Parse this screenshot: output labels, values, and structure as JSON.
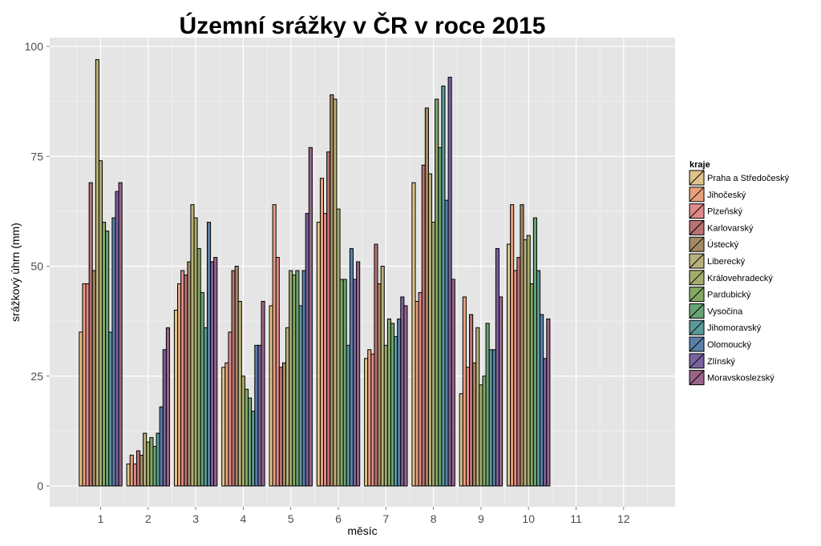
{
  "chart_data": {
    "type": "bar",
    "title": "Územní srážky v ČR v roce 2015",
    "xlabel": "měsíc",
    "ylabel": "srážkový úhrn (mm)",
    "ylim": [
      0,
      105
    ],
    "yticks": [
      0,
      25,
      50,
      75,
      100
    ],
    "categories": [
      "1",
      "2",
      "3",
      "4",
      "5",
      "6",
      "7",
      "8",
      "9",
      "10",
      "11",
      "12"
    ],
    "grid": true,
    "legend_title": "kraje",
    "legend_position": "right",
    "series": [
      {
        "name": "Praha a Středočeský",
        "color": "#e0c48a",
        "values": [
          35,
          5,
          40,
          27,
          41,
          60,
          29,
          69,
          21,
          55,
          null,
          null
        ]
      },
      {
        "name": "Jihočeský",
        "color": "#e8a07c",
        "values": [
          46,
          7,
          46,
          28,
          64,
          70,
          31,
          42,
          43,
          64,
          null,
          null
        ]
      },
      {
        "name": "Plzeňský",
        "color": "#df8a8a",
        "values": [
          46,
          5,
          49,
          35,
          52,
          62,
          30,
          44,
          27,
          49,
          null,
          null
        ]
      },
      {
        "name": "Karlovarský",
        "color": "#b87272",
        "values": [
          69,
          8,
          48,
          49,
          27,
          76,
          55,
          73,
          39,
          52,
          null,
          null
        ]
      },
      {
        "name": "Ústecký",
        "color": "#a48a64",
        "values": [
          49,
          7,
          51,
          50,
          28,
          89,
          46,
          86,
          28,
          64,
          null,
          null
        ]
      },
      {
        "name": "Liberecký",
        "color": "#b8b07a",
        "values": [
          97,
          12,
          64,
          42,
          36,
          88,
          50,
          71,
          36,
          56,
          null,
          null
        ]
      },
      {
        "name": "Královehradecký",
        "color": "#a4ac6c",
        "values": [
          74,
          10,
          61,
          25,
          49,
          63,
          32,
          60,
          23,
          57,
          null,
          null
        ]
      },
      {
        "name": "Pardubický",
        "color": "#84a866",
        "values": [
          60,
          11,
          54,
          22,
          48,
          47,
          38,
          88,
          25,
          46,
          null,
          null
        ]
      },
      {
        "name": "Vysočina",
        "color": "#6aa474",
        "values": [
          58,
          9,
          44,
          20,
          49,
          47,
          37,
          77,
          37,
          61,
          null,
          null
        ]
      },
      {
        "name": "Jihomoravský",
        "color": "#5a9a98",
        "values": [
          35,
          12,
          36,
          17,
          41,
          32,
          34,
          91,
          31,
          49,
          null,
          null
        ]
      },
      {
        "name": "Olomoucký",
        "color": "#5a80a8",
        "values": [
          61,
          18,
          60,
          32,
          49,
          54,
          38,
          65,
          31,
          39,
          null,
          null
        ]
      },
      {
        "name": "Zlínský",
        "color": "#7862a0",
        "values": [
          67,
          31,
          51,
          32,
          62,
          47,
          43,
          93,
          54,
          29,
          null,
          null
        ]
      },
      {
        "name": "Moravskoslezský",
        "color": "#9a6488",
        "values": [
          69,
          36,
          52,
          42,
          77,
          51,
          41,
          47,
          43,
          38,
          null,
          null
        ]
      }
    ]
  }
}
